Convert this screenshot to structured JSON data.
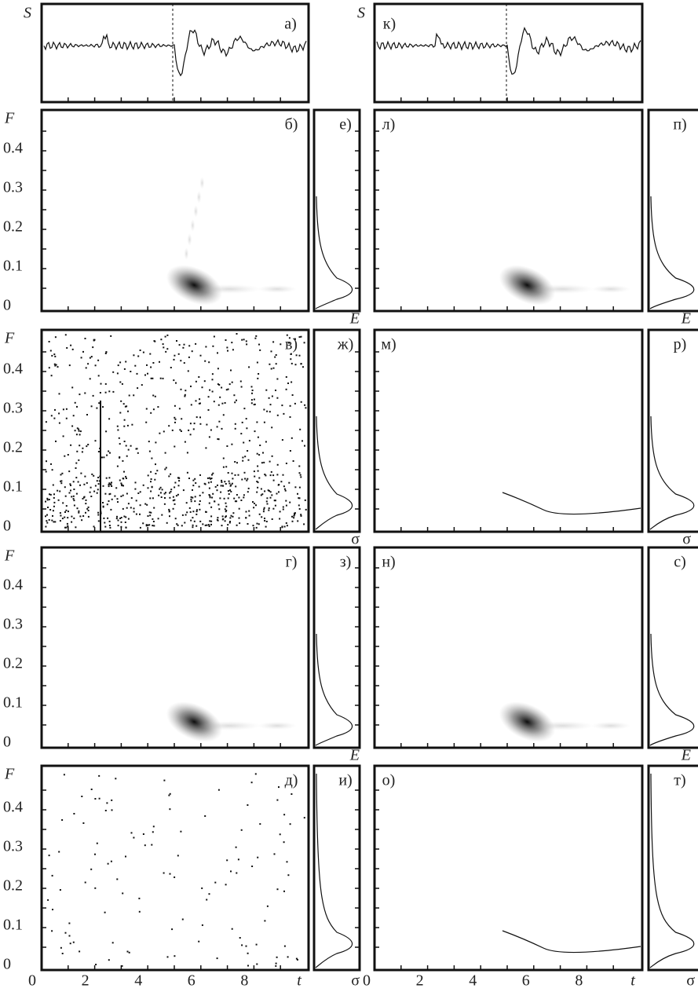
{
  "axes": {
    "signal": "S",
    "frequency": "F",
    "energy": "E",
    "sigma": "σ",
    "time": "t"
  },
  "yticks": [
    "0",
    "0.1",
    "0.2",
    "0.3",
    "0.4"
  ],
  "xticks": [
    "0",
    "2",
    "4",
    "6",
    "8"
  ],
  "panels": {
    "left": {
      "signal": "а)",
      "rows": [
        [
          "б)",
          "е)"
        ],
        [
          "в)",
          "ж)"
        ],
        [
          "г)",
          "з)"
        ],
        [
          "д)",
          "и)"
        ]
      ]
    },
    "right": {
      "signal": "к)",
      "rows": [
        [
          "л)",
          "п)"
        ],
        [
          "м)",
          "р)"
        ],
        [
          "н)",
          "с)"
        ],
        [
          "о)",
          "т)"
        ]
      ]
    }
  }
}
